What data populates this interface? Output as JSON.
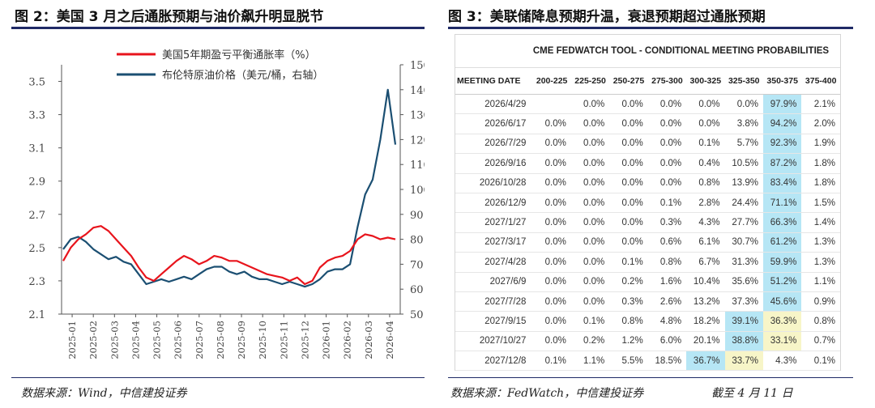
{
  "left_panel": {
    "title": "图 2：美国 3 月之后通胀预期与油价飙升明显脱节",
    "source": "数据来源：Wind，中信建投证券"
  },
  "right_panel": {
    "title": "图 3：美联储降息预期升温，衰退预期超过通胀预期",
    "source": "数据来源：FedWatch，中信建投证券",
    "note": "截至 4 月 11 日"
  },
  "colors": {
    "breakeven": "#e8141c",
    "brent": "#1b4f72",
    "rule": "#1f2a66",
    "highlight_max": "#b6e6f5",
    "highlight_second": "#f7f5c8"
  },
  "chart_data": {
    "type": "line",
    "legend_placement": "top-center",
    "x_ticks": [
      "2025-01",
      "2025-02",
      "2025-03",
      "2025-04",
      "2025-05",
      "2025-06",
      "2025-07",
      "2025-08",
      "2025-09",
      "2025-10",
      "2025-11",
      "2025-12",
      "2026-01",
      "2026-02",
      "2026-03",
      "2026-04"
    ],
    "y_left": {
      "min": 2.1,
      "max": 3.6,
      "ticks": [
        "2.1",
        "2.3",
        "2.5",
        "2.7",
        "2.9",
        "3.1",
        "3.3",
        "3.5"
      ]
    },
    "y_right": {
      "min": 50,
      "max": 150,
      "ticks": [
        "50",
        "60",
        "70",
        "80",
        "90",
        "100",
        "110",
        "120",
        "130",
        "140",
        "150"
      ]
    },
    "grid": false,
    "series": [
      {
        "name": "美国5年期盈亏平衡通胀率（%）",
        "axis": "left",
        "values": [
          2.42,
          2.5,
          2.55,
          2.58,
          2.62,
          2.63,
          2.6,
          2.55,
          2.5,
          2.45,
          2.38,
          2.32,
          2.3,
          2.34,
          2.38,
          2.42,
          2.45,
          2.43,
          2.4,
          2.42,
          2.45,
          2.44,
          2.42,
          2.42,
          2.4,
          2.38,
          2.36,
          2.34,
          2.33,
          2.32,
          2.3,
          2.32,
          2.28,
          2.3,
          2.38,
          2.42,
          2.44,
          2.45,
          2.48,
          2.55,
          2.58,
          2.57,
          2.55,
          2.56,
          2.55
        ]
      },
      {
        "name": "布伦特原油价格（美元/桶，右轴）",
        "axis": "right",
        "values": [
          76,
          80,
          81,
          79,
          76,
          74,
          72,
          73,
          71,
          70,
          66,
          62,
          63,
          64,
          63,
          64,
          65,
          64,
          66,
          68,
          69,
          69,
          67,
          66,
          67,
          65,
          64,
          64,
          63,
          62,
          63,
          62,
          61,
          62,
          64,
          67,
          68,
          68,
          70,
          85,
          98,
          104,
          120,
          140,
          118
        ]
      }
    ]
  },
  "fedwatch": {
    "title": "CME FEDWATCH TOOL - CONDITIONAL MEETING PROBABILITIES",
    "columns": [
      "MEETING DATE",
      "200-225",
      "225-250",
      "250-275",
      "275-300",
      "300-325",
      "325-350",
      "350-375",
      "375-400"
    ],
    "rows": [
      {
        "cells": [
          "2026/4/29",
          "",
          "0.0%",
          "0.0%",
          "0.0%",
          "0.0%",
          "0.0%",
          "97.9%",
          "2.1%"
        ],
        "blue": [
          6
        ],
        "yellow": []
      },
      {
        "cells": [
          "2026/6/17",
          "0.0%",
          "0.0%",
          "0.0%",
          "0.0%",
          "0.0%",
          "3.8%",
          "94.2%",
          "2.0%"
        ],
        "blue": [
          6
        ],
        "yellow": []
      },
      {
        "cells": [
          "2026/7/29",
          "0.0%",
          "0.0%",
          "0.0%",
          "0.0%",
          "0.1%",
          "5.7%",
          "92.3%",
          "1.9%"
        ],
        "blue": [
          6
        ],
        "yellow": []
      },
      {
        "cells": [
          "2026/9/16",
          "0.0%",
          "0.0%",
          "0.0%",
          "0.0%",
          "0.4%",
          "10.5%",
          "87.2%",
          "1.8%"
        ],
        "blue": [
          6
        ],
        "yellow": []
      },
      {
        "cells": [
          "2026/10/28",
          "0.0%",
          "0.0%",
          "0.0%",
          "0.0%",
          "0.8%",
          "13.9%",
          "83.4%",
          "1.8%"
        ],
        "blue": [
          6
        ],
        "yellow": []
      },
      {
        "cells": [
          "2026/12/9",
          "0.0%",
          "0.0%",
          "0.0%",
          "0.1%",
          "2.8%",
          "24.4%",
          "71.1%",
          "1.5%"
        ],
        "blue": [
          6
        ],
        "yellow": []
      },
      {
        "cells": [
          "2027/1/27",
          "0.0%",
          "0.0%",
          "0.0%",
          "0.3%",
          "4.3%",
          "27.7%",
          "66.3%",
          "1.4%"
        ],
        "blue": [
          6
        ],
        "yellow": []
      },
      {
        "cells": [
          "2027/3/17",
          "0.0%",
          "0.0%",
          "0.0%",
          "0.6%",
          "6.1%",
          "30.7%",
          "61.2%",
          "1.3%"
        ],
        "blue": [
          6
        ],
        "yellow": []
      },
      {
        "cells": [
          "2027/4/28",
          "0.0%",
          "0.0%",
          "0.1%",
          "0.8%",
          "6.7%",
          "31.3%",
          "59.9%",
          "1.3%"
        ],
        "blue": [
          6
        ],
        "yellow": []
      },
      {
        "cells": [
          "2027/6/9",
          "0.0%",
          "0.0%",
          "0.2%",
          "1.6%",
          "10.4%",
          "35.6%",
          "51.2%",
          "1.1%"
        ],
        "blue": [
          6
        ],
        "yellow": []
      },
      {
        "cells": [
          "2027/7/28",
          "0.0%",
          "0.0%",
          "0.3%",
          "2.6%",
          "13.2%",
          "37.3%",
          "45.6%",
          "0.9%"
        ],
        "blue": [
          6
        ],
        "yellow": []
      },
      {
        "cells": [
          "2027/9/15",
          "0.0%",
          "0.1%",
          "0.8%",
          "4.8%",
          "18.2%",
          "39.1%",
          "36.3%",
          "0.8%"
        ],
        "blue": [
          5
        ],
        "yellow": [
          6
        ]
      },
      {
        "cells": [
          "2027/10/27",
          "0.0%",
          "0.2%",
          "1.2%",
          "6.0%",
          "20.1%",
          "38.8%",
          "33.1%",
          "0.7%"
        ],
        "blue": [
          5
        ],
        "yellow": [
          6
        ]
      },
      {
        "cells": [
          "2027/12/8",
          "0.1%",
          "1.1%",
          "5.5%",
          "18.5%",
          "36.7%",
          "33.7%",
          "4.3%",
          "0.1%"
        ],
        "blue": [
          4
        ],
        "yellow": [
          5
        ]
      }
    ]
  }
}
